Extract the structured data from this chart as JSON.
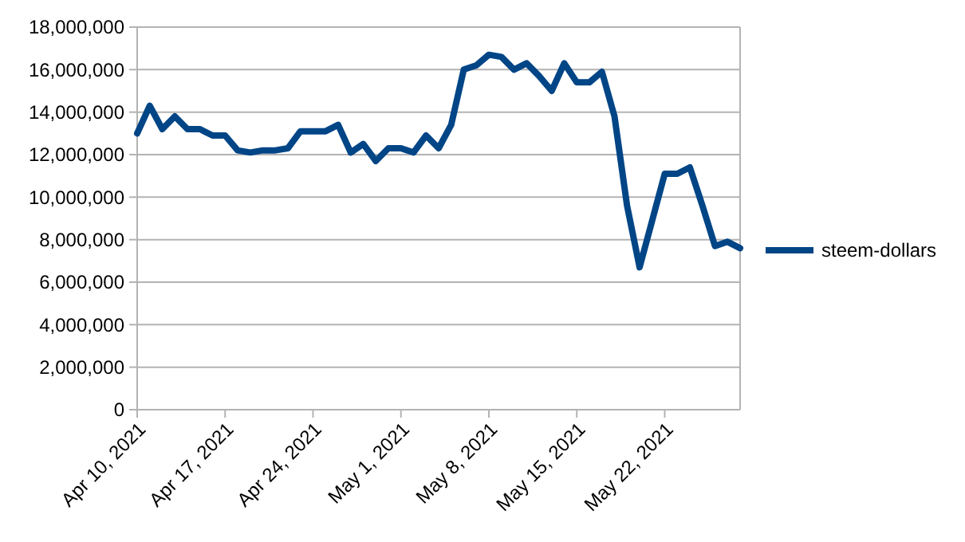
{
  "chart_data": {
    "type": "line",
    "x": [
      "2021-04-10",
      "2021-04-11",
      "2021-04-12",
      "2021-04-13",
      "2021-04-14",
      "2021-04-15",
      "2021-04-16",
      "2021-04-17",
      "2021-04-18",
      "2021-04-19",
      "2021-04-20",
      "2021-04-21",
      "2021-04-22",
      "2021-04-23",
      "2021-04-24",
      "2021-04-25",
      "2021-04-26",
      "2021-04-27",
      "2021-04-28",
      "2021-04-29",
      "2021-04-30",
      "2021-05-01",
      "2021-05-02",
      "2021-05-03",
      "2021-05-04",
      "2021-05-05",
      "2021-05-06",
      "2021-05-07",
      "2021-05-08",
      "2021-05-09",
      "2021-05-10",
      "2021-05-11",
      "2021-05-12",
      "2021-05-13",
      "2021-05-14",
      "2021-05-15",
      "2021-05-16",
      "2021-05-17",
      "2021-05-18",
      "2021-05-19",
      "2021-05-20",
      "2021-05-21",
      "2021-05-22",
      "2021-05-23",
      "2021-05-24",
      "2021-05-25",
      "2021-05-26",
      "2021-05-27",
      "2021-05-28"
    ],
    "series": [
      {
        "name": "steem-dollars",
        "color": "#004586",
        "values": [
          13000000,
          14300000,
          13200000,
          13800000,
          13200000,
          13200000,
          12900000,
          12900000,
          12200000,
          12100000,
          12200000,
          12200000,
          12300000,
          13100000,
          13100000,
          13100000,
          13400000,
          12100000,
          12500000,
          11700000,
          12300000,
          12300000,
          12100000,
          12900000,
          12300000,
          13400000,
          16000000,
          16200000,
          16700000,
          16600000,
          16000000,
          16300000,
          15700000,
          15000000,
          16300000,
          15400000,
          15400000,
          15900000,
          13800000,
          9600000,
          6700000,
          8900000,
          11100000,
          11100000,
          11400000,
          9600000,
          7700000,
          7900000,
          7600000
        ]
      }
    ],
    "xlim": [
      "2021-04-10",
      "2021-05-28"
    ],
    "xticks": [
      {
        "value": "2021-04-10",
        "label": "Apr 10, 2021"
      },
      {
        "value": "2021-04-17",
        "label": "Apr 17, 2021"
      },
      {
        "value": "2021-04-24",
        "label": "Apr 24, 2021"
      },
      {
        "value": "2021-05-01",
        "label": "May 1, 2021"
      },
      {
        "value": "2021-05-08",
        "label": "May 8, 2021"
      },
      {
        "value": "2021-05-15",
        "label": "May 15, 2021"
      },
      {
        "value": "2021-05-22",
        "label": "May 22, 2021"
      }
    ],
    "ylim": [
      0,
      18000000
    ],
    "yticks": [
      {
        "value": 0,
        "label": "0"
      },
      {
        "value": 2000000,
        "label": "2,000,000"
      },
      {
        "value": 4000000,
        "label": "4,000,000"
      },
      {
        "value": 6000000,
        "label": "6,000,000"
      },
      {
        "value": 8000000,
        "label": "8,000,000"
      },
      {
        "value": 10000000,
        "label": "10,000,000"
      },
      {
        "value": 12000000,
        "label": "12,000,000"
      },
      {
        "value": 14000000,
        "label": "14,000,000"
      },
      {
        "value": 16000000,
        "label": "16,000,000"
      },
      {
        "value": 18000000,
        "label": "18,000,000"
      }
    ],
    "grid": "y",
    "legend": "right",
    "marker": "none",
    "line_style": "solid"
  }
}
